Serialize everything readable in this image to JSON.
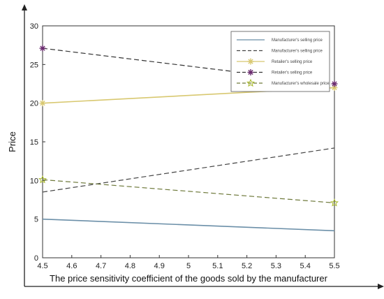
{
  "chart_data": {
    "type": "line",
    "title": "",
    "xlabel": "The price sensitivity coefficient of the goods sold by the manufacturer",
    "ylabel": "Price",
    "xlim": [
      4.5,
      5.5
    ],
    "ylim": [
      0,
      30
    ],
    "x_ticks": [
      "4.5",
      "4.6",
      "4.7",
      "4.8",
      "4.9",
      "5",
      "5.1",
      "5.2",
      "5.3",
      "5.4",
      "5.5"
    ],
    "y_ticks": [
      "0",
      "5",
      "10",
      "15",
      "20",
      "25",
      "30"
    ],
    "grid": false,
    "legend_position": "top-right",
    "series": [
      {
        "name": "Manufacturer's selling price",
        "x": [
          4.5,
          5.5
        ],
        "y": [
          5.0,
          3.5
        ],
        "color": "#6b8fa8",
        "dash": "solid",
        "marker": "none"
      },
      {
        "name": "Manufacturer's selling price",
        "x": [
          4.5,
          5.5
        ],
        "y": [
          8.5,
          14.2
        ],
        "color": "#444444",
        "dash": "dashed",
        "marker": "none"
      },
      {
        "name": "Retailer's selling price",
        "x": [
          4.5,
          5.5
        ],
        "y": [
          20.0,
          22.0
        ],
        "color": "#d8c870",
        "dash": "solid",
        "marker": "asterisk"
      },
      {
        "name": "Retailer's selling price",
        "x": [
          4.5,
          5.5
        ],
        "y": [
          27.1,
          22.5
        ],
        "color": "#333333",
        "dash": "dashed",
        "marker": "asterisk-purple"
      },
      {
        "name": "Manufacturer's wholesale price",
        "x": [
          4.5,
          5.5
        ],
        "y": [
          10.1,
          7.1
        ],
        "color": "#6f7a3c",
        "dash": "dashed",
        "marker": "star"
      }
    ]
  }
}
